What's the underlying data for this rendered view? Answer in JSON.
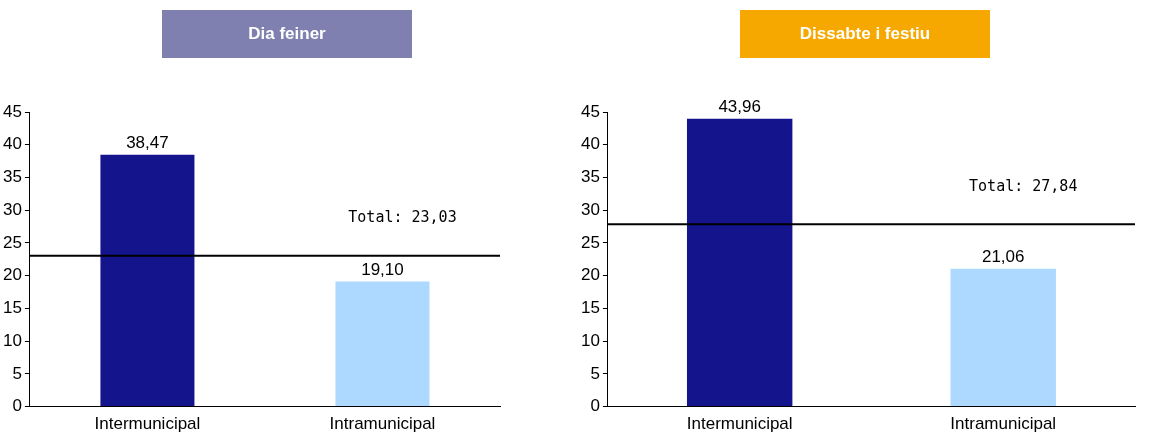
{
  "chart_data": [
    {
      "type": "bar",
      "title": "Dia feiner",
      "categories": [
        "Intermunicipal",
        "Intramunicipal"
      ],
      "values": [
        38.47,
        19.1
      ],
      "colors": [
        "#14148c",
        "#add8ff"
      ],
      "value_labels": [
        "38,47",
        "19,10"
      ],
      "ylim": [
        0,
        45
      ],
      "yticks": [
        0,
        5,
        10,
        15,
        20,
        25,
        30,
        35,
        40,
        45
      ],
      "grid": false,
      "legend": false,
      "ref_lines": [
        {
          "axis": "y",
          "value": 23.03,
          "label": "Total: 23,03",
          "color": "#000000"
        }
      ]
    },
    {
      "type": "bar",
      "title": "Dissabte i festiu",
      "categories": [
        "Intermunicipal",
        "Intramunicipal"
      ],
      "values": [
        43.96,
        21.06
      ],
      "colors": [
        "#14148c",
        "#add8ff"
      ],
      "value_labels": [
        "43,96",
        "21,06"
      ],
      "ylim": [
        0,
        45
      ],
      "yticks": [
        0,
        5,
        10,
        15,
        20,
        25,
        30,
        35,
        40,
        45
      ],
      "grid": false,
      "legend": false,
      "ref_lines": [
        {
          "axis": "y",
          "value": 27.84,
          "label": "Total: 27,84",
          "color": "#000000"
        }
      ]
    }
  ]
}
